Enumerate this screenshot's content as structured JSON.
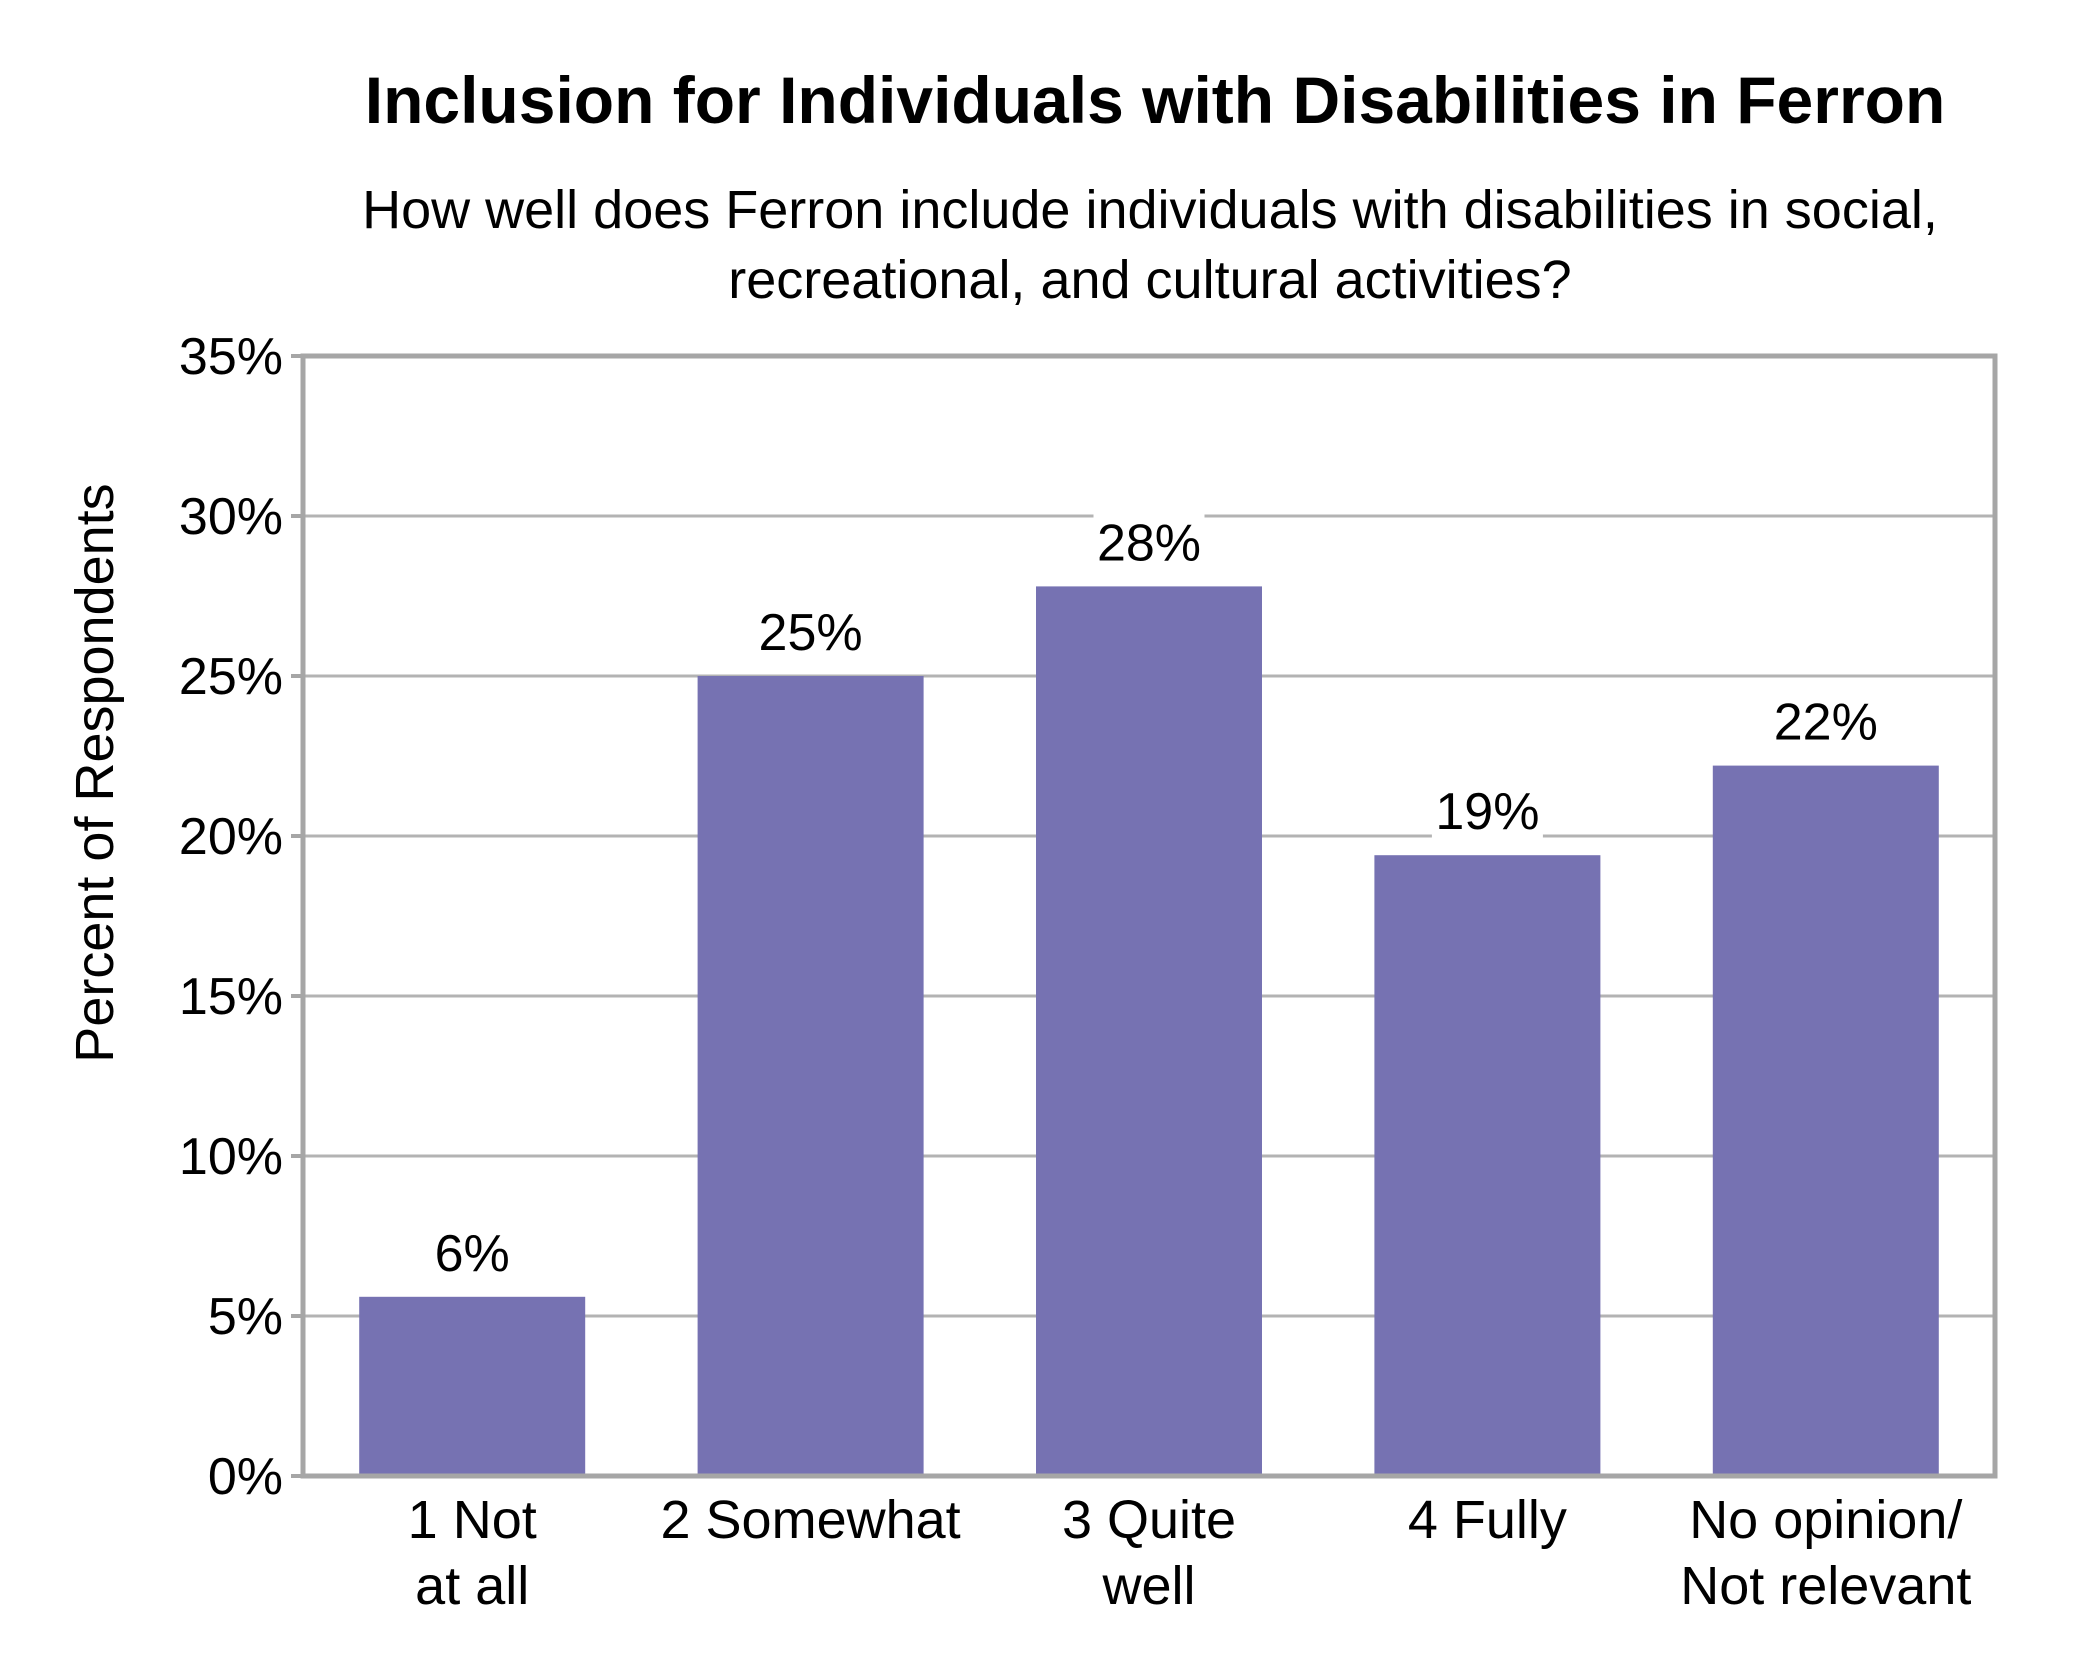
{
  "chart_data": {
    "type": "bar",
    "title": "Inclusion for Individuals with Disabilities in Ferron",
    "subtitle_lines": [
      "How well does Ferron include individuals with disabilities in social,",
      "recreational, and cultural activities?"
    ],
    "ylabel": "Percent of Respondents",
    "xlabel": "",
    "categories": [
      [
        "1 Not",
        "at all"
      ],
      [
        "2 Somewhat"
      ],
      [
        "3 Quite",
        "well"
      ],
      [
        "4 Fully"
      ],
      [
        "No opinion/",
        "Not relevant"
      ]
    ],
    "values": [
      5.6,
      25.0,
      27.8,
      19.4,
      22.2
    ],
    "data_labels": [
      "6%",
      "25%",
      "28%",
      "19%",
      "22%"
    ],
    "ylim": [
      0,
      35
    ],
    "yticks": [
      0,
      5,
      10,
      15,
      20,
      25,
      30,
      35
    ],
    "ytick_labels": [
      "0%",
      "5%",
      "10%",
      "15%",
      "20%",
      "25%",
      "30%",
      "35%"
    ],
    "grid": true,
    "legend": "none",
    "colors": {
      "bar": "#7672b2",
      "grid": "#b3b3b3",
      "frame": "#a6a6a6",
      "text": "#000000"
    }
  }
}
